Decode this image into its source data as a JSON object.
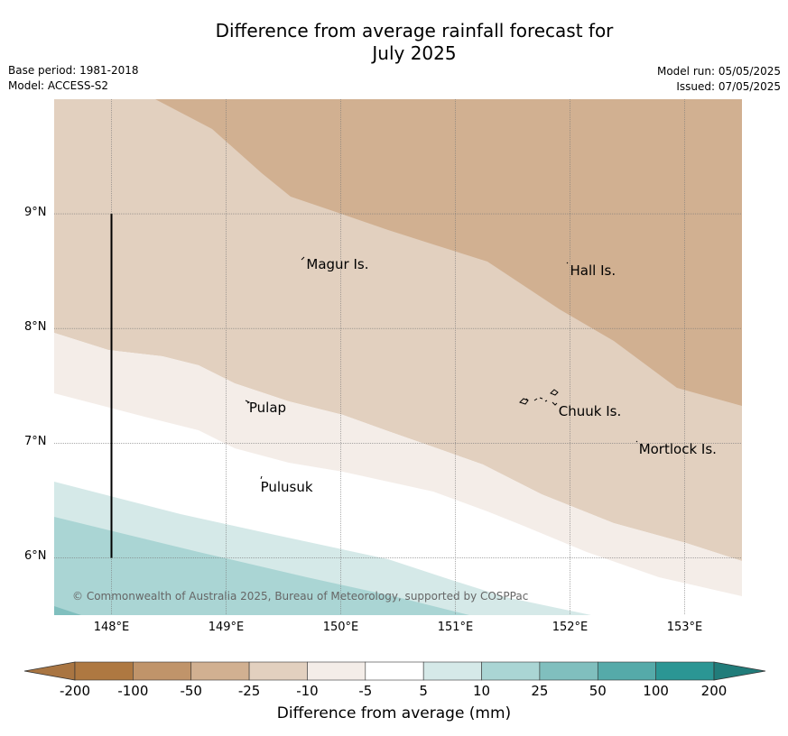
{
  "title_line1": "Difference from average rainfall forecast for",
  "title_line2": "July 2025",
  "base_period": "Base period: 1981-2018",
  "model": "Model: ACCESS-S2",
  "model_run": "Model run: 05/05/2025",
  "issued": "Issued: 07/05/2025",
  "copyright": "© Commonwealth of Australia 2025, Bureau of Meteorology, supported by COSPPac",
  "map": {
    "lon_range": [
      147.5,
      153.5
    ],
    "lat_range": [
      5.5,
      10.0
    ],
    "lat_ticks": [
      {
        "v": 9,
        "label": "9°N"
      },
      {
        "v": 8,
        "label": "8°N"
      },
      {
        "v": 7,
        "label": "7°N"
      },
      {
        "v": 6,
        "label": "6°N"
      }
    ],
    "lon_ticks": [
      {
        "v": 148,
        "label": "148°E"
      },
      {
        "v": 149,
        "label": "149°E"
      },
      {
        "v": 150,
        "label": "150°E"
      },
      {
        "v": 151,
        "label": "151°E"
      },
      {
        "v": 152,
        "label": "152°E"
      },
      {
        "v": 153,
        "label": "153°E"
      }
    ],
    "places": [
      {
        "name": "Magur Is.",
        "lon": 149.7,
        "lat": 8.55
      },
      {
        "name": "Hall Is.",
        "lon": 152.0,
        "lat": 8.5
      },
      {
        "name": "Pulap",
        "lon": 149.2,
        "lat": 7.3
      },
      {
        "name": "Chuuk Is.",
        "lon": 151.9,
        "lat": 7.27
      },
      {
        "name": "Mortlock Is.",
        "lon": 152.6,
        "lat": 6.94
      },
      {
        "name": "Pulusuk",
        "lon": 149.3,
        "lat": 6.61
      }
    ],
    "vertical_line": {
      "lon": 148.0,
      "lat_from": 6.0,
      "lat_to": 9.0
    },
    "contour_levels": [
      "-50 to -25 (top-right)",
      "-25 to -10",
      "-10 to -5",
      "-5 to 5",
      "5 to 10",
      "10 to 25",
      "25 to 50"
    ]
  },
  "colorbar": {
    "ticks": [
      "-200",
      "-100",
      "-50",
      "-25",
      "-10",
      "-5",
      "5",
      "10",
      "25",
      "50",
      "100",
      "200"
    ],
    "colors": [
      "#a97542",
      "#ae7841",
      "#c0946a",
      "#d1b091",
      "#e2d0bf",
      "#f4ede8",
      "#ffffff",
      "#d5e9e8",
      "#aad5d4",
      "#80bfbe",
      "#55aaa9",
      "#2b9694",
      "#217c7a"
    ],
    "label": "Difference from average (mm)"
  }
}
